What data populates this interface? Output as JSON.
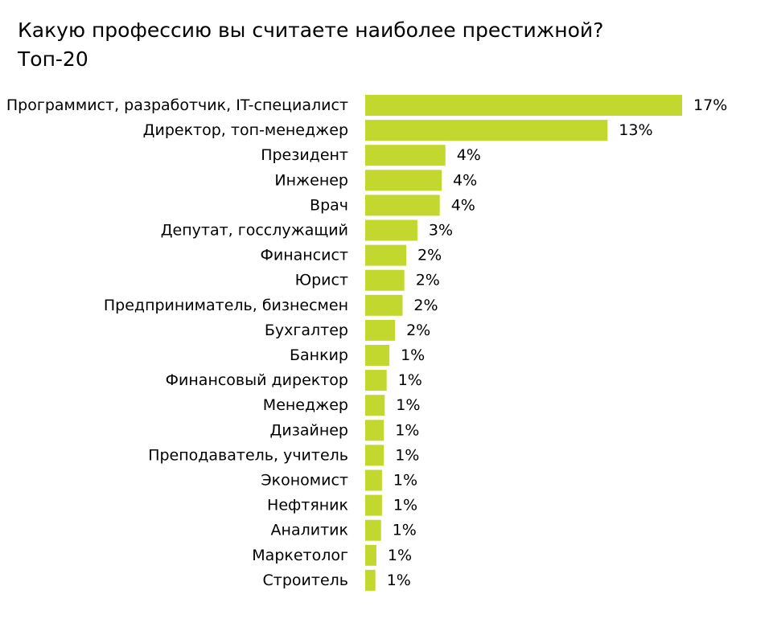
{
  "chart_data": {
    "type": "bar",
    "orientation": "horizontal",
    "title": "Какую профессию вы считаете наиболее престижной?",
    "subtitle": "Топ-20",
    "bar_color": "#c3d82e",
    "xlim": [
      0,
      17
    ],
    "grid": false,
    "legend": "none",
    "categories": [
      "Программист, разработчик, IT-специалист",
      "Директор, топ-менеджер",
      "Президент",
      "Инженер",
      "Врач",
      "Депутат, госслужащий",
      "Финансист",
      "Юрист",
      "Предприниматель, бизнесмен",
      "Бухгалтер",
      "Банкир",
      "Финансовый директор",
      "Менеджер",
      "Дизайнер",
      "Преподаватель, учитель",
      "Экономист",
      "Нефтяник",
      "Аналитик",
      "Маркетолог",
      "Строитель"
    ],
    "values": [
      17.0,
      13.0,
      4.3,
      4.1,
      4.0,
      2.8,
      2.2,
      2.1,
      2.0,
      1.6,
      1.3,
      1.15,
      1.05,
      1.0,
      1.0,
      0.9,
      0.9,
      0.85,
      0.6,
      0.55
    ],
    "value_labels": [
      "17%",
      "13%",
      "4%",
      "4%",
      "4%",
      "3%",
      "2%",
      "2%",
      "2%",
      "2%",
      "1%",
      "1%",
      "1%",
      "1%",
      "1%",
      "1%",
      "1%",
      "1%",
      "1%",
      "1%"
    ]
  }
}
